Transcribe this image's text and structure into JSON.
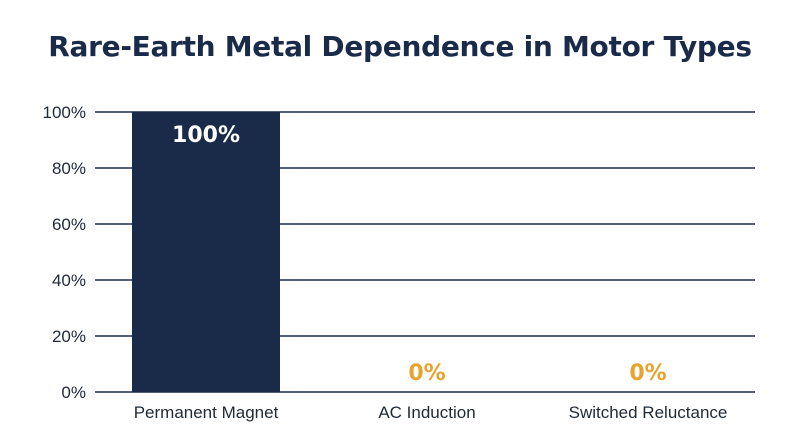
{
  "chart_data": {
    "type": "bar",
    "title": "Rare-Earth Metal Dependence in Motor Types",
    "xlabel": "",
    "ylabel": "",
    "categories": [
      "Permanent Magnet",
      "AC Induction",
      "Switched Reluctance"
    ],
    "values": [
      100,
      0,
      0
    ],
    "data_labels": [
      "100%",
      "0%",
      "0%"
    ],
    "yticks": [
      0,
      20,
      40,
      60,
      80,
      100
    ],
    "ytick_labels": [
      "0%",
      "20%",
      "40%",
      "60%",
      "80%",
      "100%"
    ],
    "ylim": [
      0,
      100
    ],
    "grid": true,
    "legend": "none",
    "colors": {
      "bar": "#1a2b4a",
      "label_inside": "#ffffff",
      "label_zero": "#e8a32e",
      "grid": "#1a2b4a",
      "title": "#1a2b4a"
    }
  }
}
